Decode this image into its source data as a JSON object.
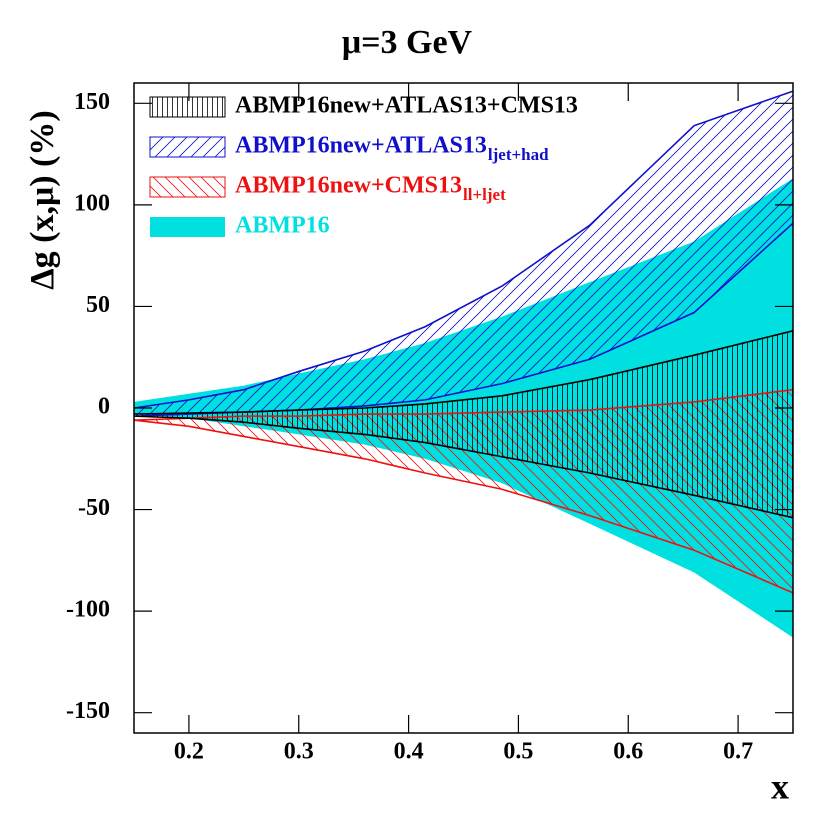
{
  "chart_data": {
    "type": "band",
    "title": "μ=3 GeV",
    "x_label": "x",
    "y_label": "Δg (x,μ) (%)",
    "x": [
      0.15,
      0.2,
      0.25,
      0.3,
      0.36,
      0.415,
      0.485,
      0.565,
      0.66,
      0.75
    ],
    "xlim": [
      0.15,
      0.75
    ],
    "ylim": [
      -160,
      160
    ],
    "xticks": [
      0.2,
      0.3,
      0.4,
      0.5,
      0.6,
      0.7
    ],
    "yticks": [
      150,
      100,
      50,
      0,
      -50,
      -100,
      -150
    ],
    "legend": "top-left",
    "series": [
      {
        "name": "ABMP16new+ATLAS13+CMS13",
        "color": "#000000",
        "hatch": "vertical",
        "upper": [
          -3,
          -2.5,
          -2,
          -1,
          0,
          2,
          6,
          14,
          26,
          38
        ],
        "lower": [
          -4,
          -5,
          -7,
          -10,
          -13,
          -17,
          -24,
          -32,
          -43,
          -54
        ]
      },
      {
        "name": "ABMP16new+ATLAS13",
        "subscript": "ljet+had",
        "color": "#1010cc",
        "hatch": "forward",
        "upper": [
          0,
          4,
          9,
          18,
          28,
          40,
          60,
          90,
          139,
          156
        ],
        "lower": [
          -4,
          -3,
          -2,
          -1,
          1,
          4,
          12,
          24,
          47,
          91
        ]
      },
      {
        "name": "ABMP16new+CMS13",
        "subscript": "ll+ljet",
        "color": "#ee1111",
        "hatch": "backward",
        "upper": [
          -6,
          -5,
          -4,
          -4,
          -3,
          -3,
          -2,
          -1,
          3,
          9
        ],
        "lower": [
          -6,
          -9,
          -14,
          -19,
          -25,
          -32,
          -40,
          -53,
          -70,
          -91
        ]
      },
      {
        "name": "ABMP16",
        "color": "#00e0e0",
        "hatch": "solid",
        "upper": [
          3,
          7,
          11,
          17,
          24,
          32,
          45,
          62,
          82,
          113
        ],
        "lower": [
          -3,
          -5,
          -9,
          -13,
          -18,
          -25,
          -37,
          -57,
          -81,
          -113
        ]
      }
    ]
  }
}
